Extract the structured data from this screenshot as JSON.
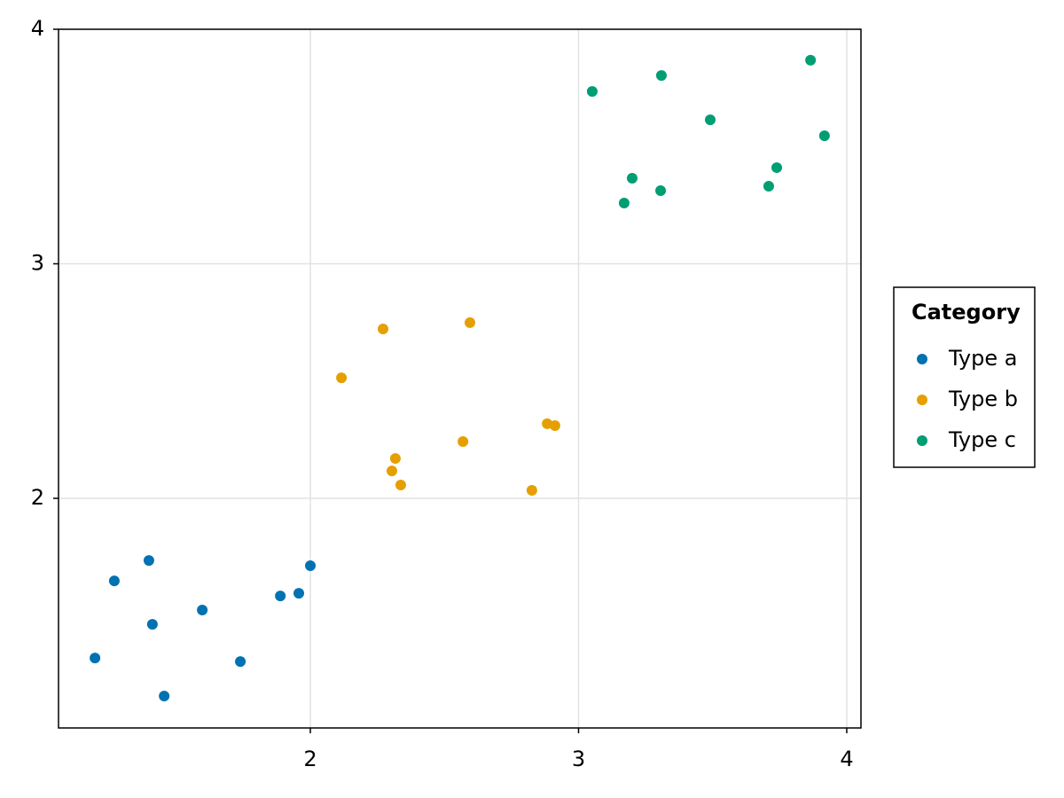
{
  "chart_data": {
    "type": "scatter",
    "legend_title": "Category",
    "legend": "right",
    "grid": true,
    "xlim": [
      1.061,
      4.053
    ],
    "xticks": [
      2,
      3,
      4
    ],
    "ylim": [
      1.021,
      4
    ],
    "yticks": [
      2,
      3,
      4
    ],
    "series": [
      {
        "name": "Type a",
        "color": "#0072b2",
        "x": [
          1.197,
          1.269,
          1.398,
          1.411,
          1.455,
          1.597,
          1.739,
          1.888,
          1.957,
          2.0
        ],
        "values": [
          1.319,
          1.648,
          1.735,
          1.463,
          1.157,
          1.524,
          1.304,
          1.584,
          1.595,
          1.713
        ]
      },
      {
        "name": "Type b",
        "color": "#e69f00",
        "x": [
          2.116,
          2.271,
          2.595,
          2.317,
          2.304,
          2.337,
          2.569,
          2.826,
          2.883,
          2.912
        ],
        "values": [
          2.514,
          2.722,
          2.749,
          2.17,
          2.117,
          2.057,
          2.242,
          2.034,
          2.318,
          2.31
        ]
      },
      {
        "name": "Type c",
        "color": "#009e73",
        "x": [
          3.051,
          3.309,
          3.491,
          3.865,
          3.917,
          3.739,
          3.709,
          3.306,
          3.2,
          3.17
        ],
        "values": [
          3.735,
          3.803,
          3.614,
          3.868,
          3.546,
          3.41,
          3.331,
          3.312,
          3.365,
          3.259
        ]
      }
    ]
  }
}
